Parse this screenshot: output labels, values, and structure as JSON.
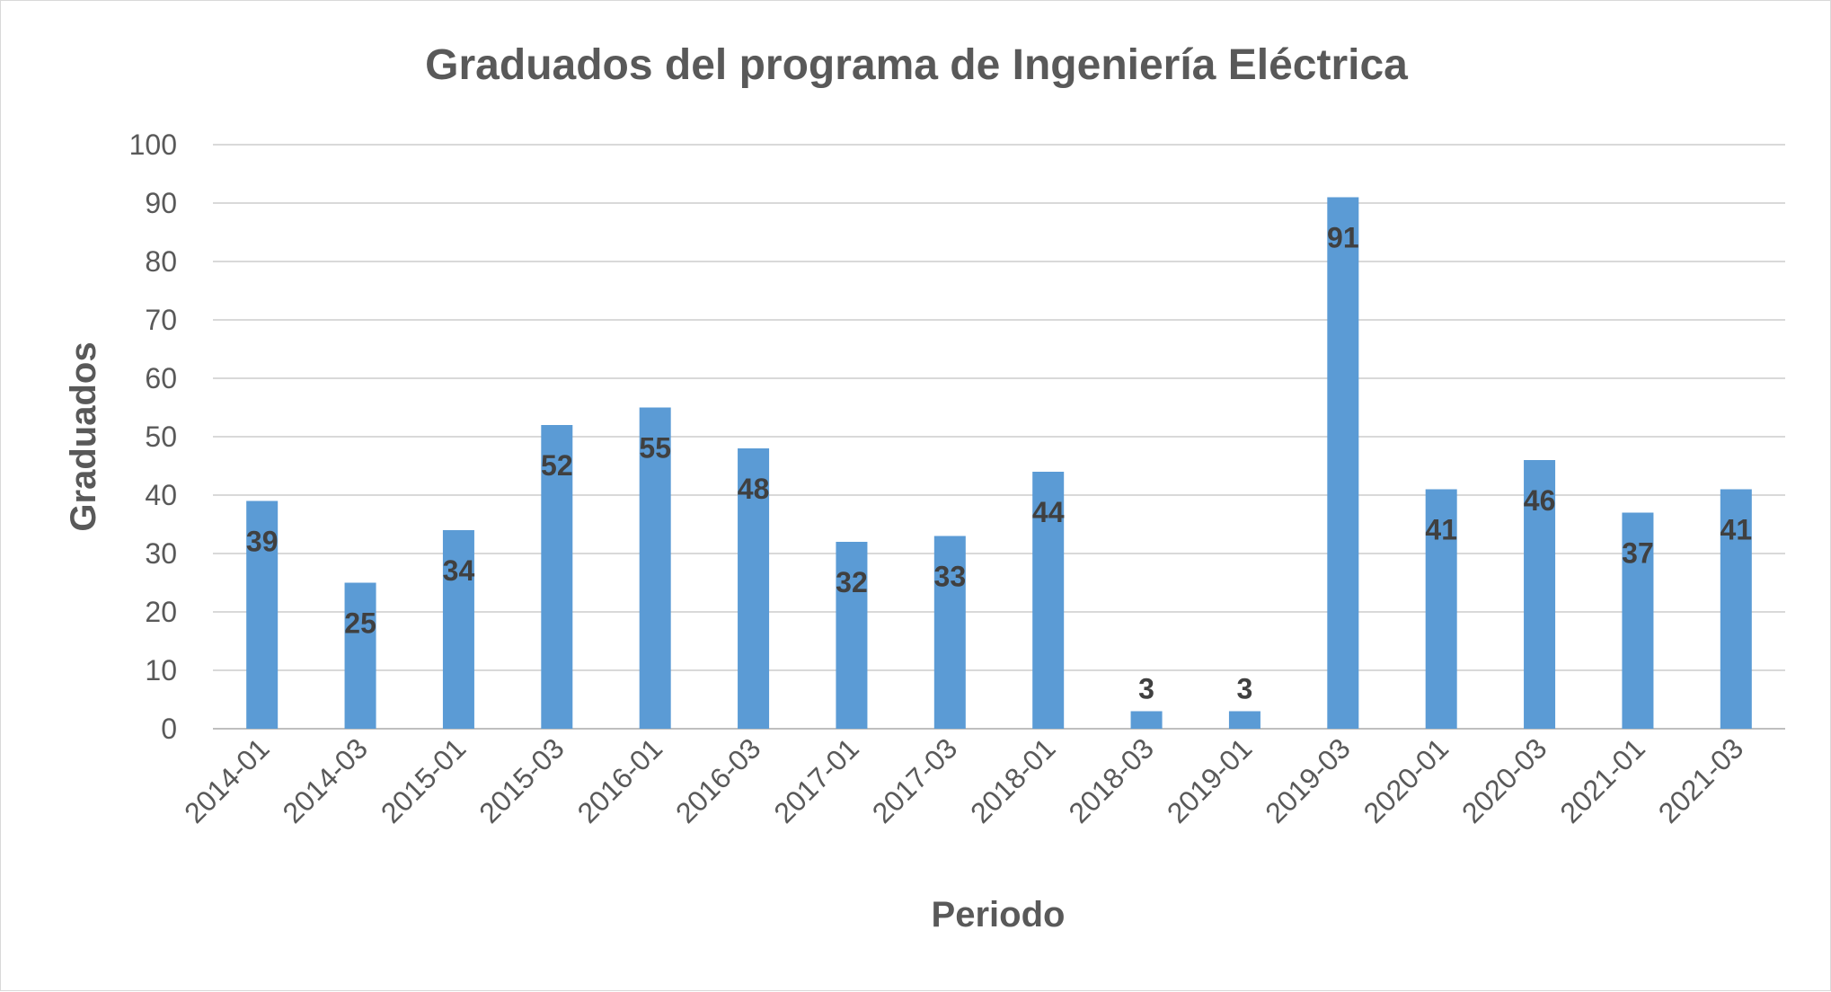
{
  "chart_data": {
    "type": "bar",
    "title": "Graduados del programa de Ingeniería Eléctrica",
    "xlabel": "Periodo",
    "ylabel": "Graduados",
    "categories": [
      "2014-01",
      "2014-03",
      "2015-01",
      "2015-03",
      "2016-01",
      "2016-03",
      "2017-01",
      "2017-03",
      "2018-01",
      "2018-03",
      "2019-01",
      "2019-03",
      "2020-01",
      "2020-03",
      "2021-01",
      "2021-03"
    ],
    "values": [
      39,
      25,
      34,
      52,
      55,
      48,
      32,
      33,
      44,
      3,
      3,
      91,
      41,
      46,
      37,
      41
    ],
    "ylim": [
      0,
      100
    ],
    "yticks": [
      0,
      10,
      20,
      30,
      40,
      50,
      60,
      70,
      80,
      90,
      100
    ],
    "grid": true,
    "legend": "none",
    "bar_color": "#5b9bd5"
  }
}
